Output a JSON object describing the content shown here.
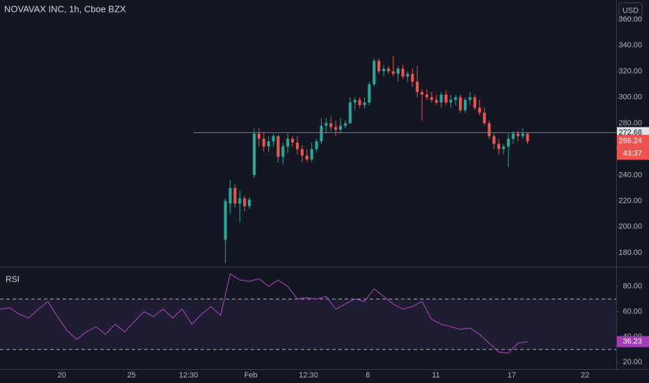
{
  "chart_data": [
    {
      "type": "candlestick",
      "title": "NOVAVAX INC, 1h, Cboe BZX",
      "currency": "USD",
      "up_color": "#26a69a",
      "down_color": "#ef5350",
      "x": [
        47,
        48,
        49,
        50,
        51,
        52,
        53,
        54,
        55,
        56,
        57,
        58,
        59,
        60,
        61,
        62,
        63,
        64,
        65,
        66,
        67,
        68,
        69,
        70,
        71,
        72,
        73,
        74,
        75,
        76,
        77,
        78,
        79,
        80,
        81,
        82,
        83,
        84,
        85,
        86,
        87,
        88,
        89,
        90,
        91,
        92,
        93,
        94,
        95,
        96,
        97,
        98,
        99,
        100,
        101,
        102,
        103,
        104,
        105,
        106,
        107,
        108,
        109,
        110
      ],
      "open": [
        190,
        218,
        230,
        218,
        222,
        216,
        240,
        272,
        268,
        262,
        266,
        270,
        254,
        262,
        268,
        265,
        260,
        255,
        252,
        260,
        266,
        278,
        280,
        277,
        275,
        278,
        280,
        296,
        298,
        294,
        296,
        310,
        328,
        320,
        322,
        320,
        318,
        322,
        316,
        318,
        312,
        304,
        302,
        300,
        298,
        296,
        302,
        296,
        298,
        300,
        290,
        298,
        300,
        292,
        288,
        280,
        270,
        264,
        260,
        262,
        268,
        272,
        270,
        272
      ],
      "high": [
        222,
        236,
        233,
        228,
        224,
        223,
        276,
        276,
        273,
        270,
        272,
        271,
        265,
        272,
        270,
        270,
        263,
        260,
        265,
        268,
        284,
        284,
        285,
        282,
        284,
        282,
        300,
        300,
        300,
        300,
        312,
        330,
        330,
        325,
        324,
        332,
        324,
        325,
        320,
        322,
        324,
        306,
        306,
        304,
        302,
        304,
        305,
        302,
        302,
        302,
        300,
        304,
        302,
        298,
        292,
        282,
        272,
        268,
        264,
        272,
        274,
        274,
        276,
        273
      ],
      "low": [
        172,
        210,
        215,
        204,
        212,
        214,
        238,
        262,
        258,
        258,
        262,
        250,
        248,
        257,
        262,
        256,
        250,
        250,
        250,
        258,
        264,
        272,
        274,
        270,
        272,
        276,
        279,
        290,
        292,
        291,
        294,
        308,
        318,
        316,
        318,
        316,
        312,
        314,
        312,
        308,
        300,
        282,
        298,
        296,
        294,
        292,
        294,
        292,
        294,
        288,
        288,
        294,
        290,
        286,
        278,
        268,
        260,
        256,
        256,
        246,
        264,
        266,
        268,
        264
      ],
      "close": [
        220,
        230,
        218,
        222,
        216,
        221,
        272,
        268,
        262,
        266,
        270,
        254,
        262,
        268,
        265,
        260,
        255,
        252,
        260,
        266,
        278,
        280,
        277,
        275,
        278,
        280,
        296,
        298,
        294,
        296,
        310,
        328,
        320,
        322,
        320,
        318,
        322,
        316,
        318,
        312,
        304,
        302,
        300,
        298,
        296,
        302,
        296,
        298,
        300,
        290,
        298,
        300,
        292,
        288,
        280,
        270,
        264,
        260,
        262,
        268,
        272,
        270,
        272,
        266
      ],
      "xlim": [
        0,
        128.5
      ],
      "ylim": [
        169.3,
        375
      ],
      "yticks": [
        {
          "value": 180,
          "label": "180.00"
        },
        {
          "value": 200,
          "label": "200.00"
        },
        {
          "value": 220,
          "label": "220.00"
        },
        {
          "value": 240,
          "label": "240.00"
        },
        {
          "value": 260,
          "label": "260.00"
        },
        {
          "value": 280,
          "label": "280.00"
        },
        {
          "value": 300,
          "label": "300.00"
        },
        {
          "value": 320,
          "label": "320.00"
        },
        {
          "value": 340,
          "label": "340.00"
        },
        {
          "value": 360,
          "label": "360.00"
        }
      ],
      "price_line": 272.68,
      "last_price": 266.24,
      "countdown": "43:37"
    },
    {
      "type": "line",
      "title": "RSI",
      "color": "#a33db5",
      "x": [
        0,
        2,
        4,
        6,
        8,
        10,
        12,
        14,
        16,
        18,
        20,
        22,
        24,
        26,
        28,
        30,
        32,
        34,
        36,
        38,
        40,
        42,
        44,
        46,
        48,
        50,
        52,
        54,
        56,
        58,
        60,
        62,
        64,
        66,
        68,
        70,
        72,
        74,
        76,
        78,
        80,
        82,
        84,
        86,
        88,
        90,
        92,
        94,
        96,
        98,
        100,
        102,
        104,
        106,
        108,
        110
      ],
      "values": [
        62,
        63,
        58,
        55,
        62,
        68,
        56,
        45,
        38,
        44,
        48,
        42,
        50,
        44,
        52,
        60,
        56,
        62,
        55,
        62,
        50,
        58,
        64,
        57,
        90,
        85,
        84,
        86,
        80,
        85,
        80,
        70,
        71,
        70,
        72,
        62,
        66,
        70,
        68,
        78,
        72,
        66,
        62,
        64,
        68,
        54,
        50,
        48,
        46,
        47,
        42,
        35,
        28,
        27,
        35,
        36.23
      ],
      "bands": [
        30,
        70
      ],
      "xlim": [
        0,
        128.5
      ],
      "ylim": [
        14.5,
        95
      ],
      "yticks": [
        {
          "value": 20,
          "label": "20.00"
        },
        {
          "value": 40,
          "label": "40.00"
        },
        {
          "value": 60,
          "label": "60.00"
        },
        {
          "value": 80,
          "label": "80.00"
        }
      ],
      "xticks": [
        {
          "value": 12.9,
          "label": "20"
        },
        {
          "value": 27.4,
          "label": "25"
        },
        {
          "value": 39.3,
          "label": "12:30"
        },
        {
          "value": 52.3,
          "label": "Feb"
        },
        {
          "value": 64.3,
          "label": "12:30"
        },
        {
          "value": 76.7,
          "label": "8"
        },
        {
          "value": 90.9,
          "label": "11"
        },
        {
          "value": 106.7,
          "label": "17"
        },
        {
          "value": 122,
          "label": "22"
        }
      ]
    }
  ]
}
